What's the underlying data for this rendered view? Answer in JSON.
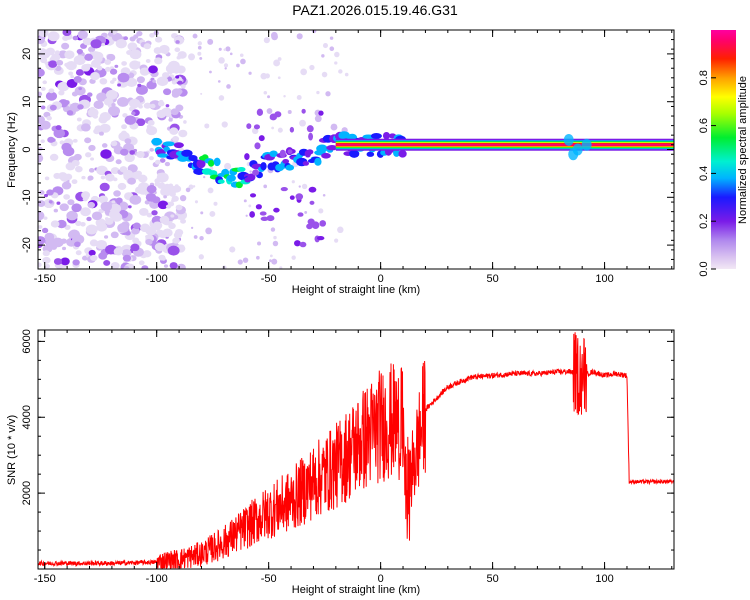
{
  "title": "PAZ1.2026.015.19.46.G31",
  "chart_data": [
    {
      "type": "heatmap",
      "title": "PAZ1.2026.015.19.46.G31",
      "xlabel": "Height of straight line (km)",
      "ylabel": "Frequency (Hz)",
      "xlim": [
        -153,
        131
      ],
      "ylim": [
        -25,
        25
      ],
      "x_ticks": [
        -150,
        -100,
        -50,
        0,
        50,
        100
      ],
      "y_ticks": [
        -20,
        -10,
        0,
        10,
        20
      ],
      "colorbar": {
        "label": "Normalized spectral amplitude",
        "range": [
          0,
          1
        ],
        "ticks": [
          "0.0",
          "0.2",
          "0.4",
          "0.6",
          "0.8"
        ]
      },
      "description_ridge": {
        "x": [
          -100,
          -90,
          -80,
          -70,
          -60,
          -50,
          -40,
          -30,
          -20,
          -10,
          0,
          10,
          50,
          90,
          110,
          131
        ],
        "frequency": [
          0,
          -1,
          -3,
          -5,
          -6,
          -2,
          -2,
          -1,
          1,
          1,
          1,
          1,
          1,
          1,
          1,
          1
        ]
      }
    },
    {
      "type": "line",
      "xlabel": "Height of straight line (km)",
      "ylabel": "SNR (10 * v/v)",
      "xlim": [
        -153,
        131
      ],
      "ylim": [
        0,
        6300
      ],
      "x_ticks": [
        -150,
        -100,
        -50,
        0,
        50,
        100
      ],
      "y_ticks": [
        2000,
        4000,
        6000
      ],
      "series": [
        {
          "name": "SNR",
          "color": "#ff0000",
          "x": [
            -153,
            -140,
            -120,
            -100,
            -90,
            -80,
            -70,
            -60,
            -50,
            -40,
            -30,
            -20,
            -10,
            0,
            5,
            10,
            12,
            20,
            30,
            40,
            50,
            60,
            70,
            80,
            85,
            90,
            95,
            100,
            105,
            110,
            111,
            120,
            131
          ],
          "y": [
            150,
            150,
            150,
            180,
            250,
            400,
            700,
            1100,
            1500,
            1800,
            2300,
            2700,
            3300,
            3800,
            3900,
            3800,
            2000,
            4200,
            4800,
            5050,
            5100,
            5150,
            5150,
            5200,
            5200,
            5100,
            5200,
            5100,
            5150,
            5100,
            2300,
            2300,
            2300
          ]
        }
      ]
    }
  ]
}
